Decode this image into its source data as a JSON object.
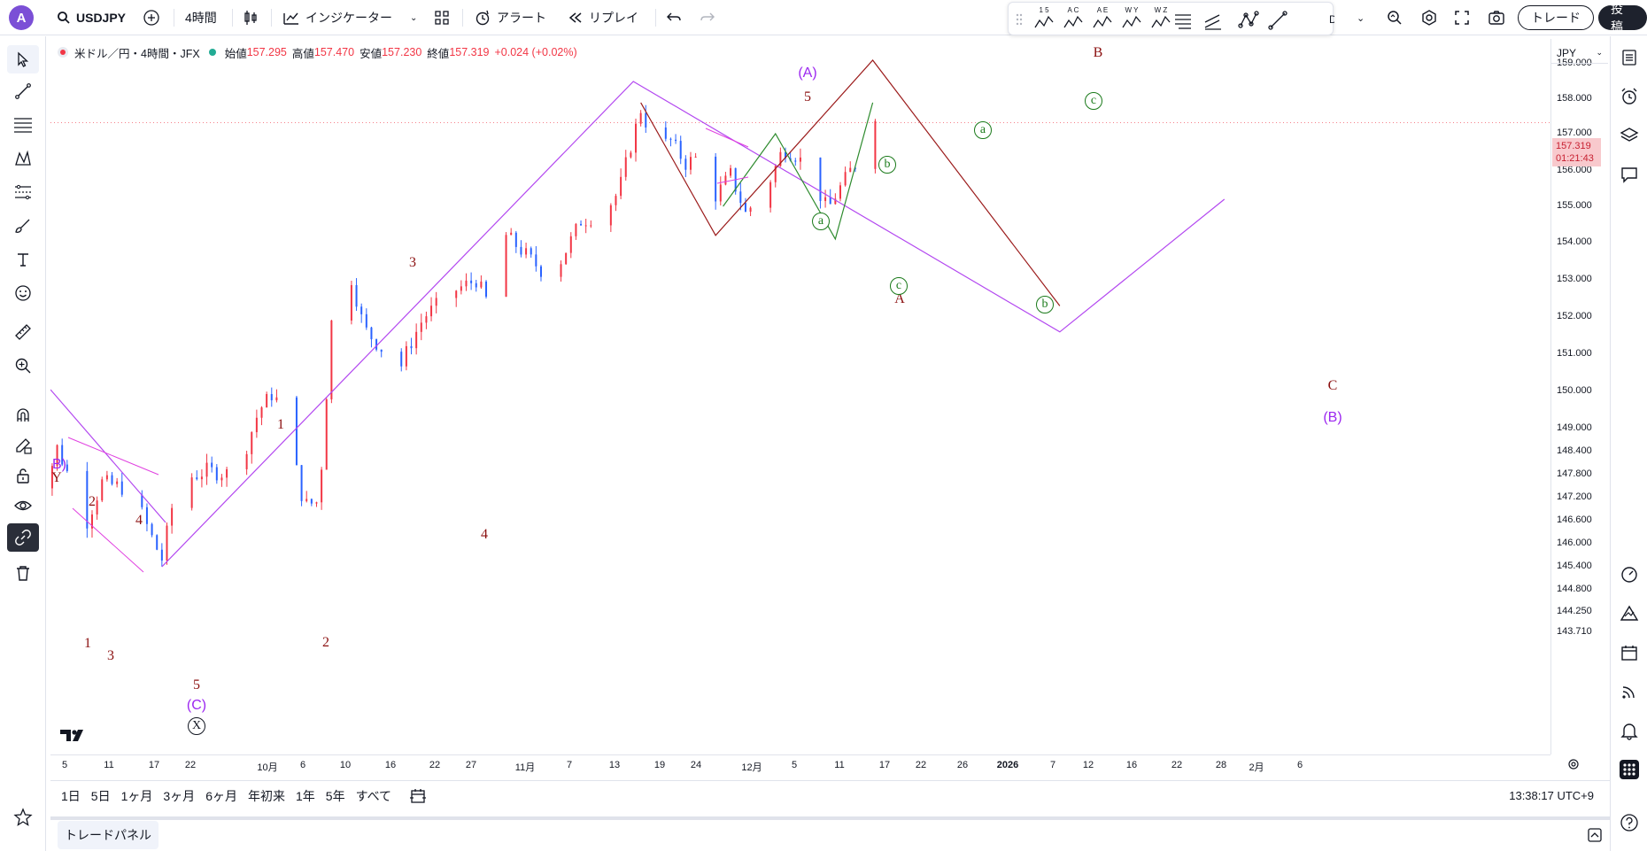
{
  "topbar": {
    "avatar": "A",
    "symbol": "USDJPY",
    "interval": "4時間",
    "indicators": "インジケーター",
    "alert": "アラート",
    "replay": "リプレイ",
    "trade": "トレード",
    "publish": "投稿",
    "drawtool_labels": [
      "1 5",
      "A C",
      "A E",
      "W Y",
      "W Z"
    ]
  },
  "legend": {
    "title": "米ドル／円・4時間・JFX",
    "open_label": "始値",
    "open": "157.295",
    "high_label": "高値",
    "high": "157.470",
    "low_label": "安値",
    "low": "157.230",
    "close_label": "終値",
    "close": "157.319",
    "change": "+0.024 (+0.02%)"
  },
  "price_scale": {
    "currency": "JPY",
    "last_price": "157.319",
    "countdown": "01:21:43",
    "ticks": [
      "159.000",
      "158.000",
      "157.000",
      "156.000",
      "155.000",
      "154.000",
      "153.000",
      "152.000",
      "151.000",
      "150.000",
      "149.000",
      "148.400",
      "147.800",
      "147.200",
      "146.600",
      "146.000",
      "145.400",
      "144.800",
      "144.250",
      "143.710"
    ]
  },
  "time_scale": {
    "ticks": [
      "5",
      "11",
      "17",
      "22",
      "10月",
      "6",
      "10",
      "16",
      "22",
      "27",
      "11月",
      "7",
      "13",
      "19",
      "24",
      "12月",
      "5",
      "11",
      "17",
      "22",
      "26",
      "2026",
      "7",
      "12",
      "16",
      "22",
      "28",
      "2月",
      "6"
    ]
  },
  "ranges": [
    "1日",
    "5日",
    "1ヶ月",
    "3ヶ月",
    "6ヶ月",
    "年初来",
    "1年",
    "5年",
    "すべて"
  ],
  "clock": "13:38:17 UTC+9",
  "bottom_panel": {
    "tab": "トレードパネル"
  },
  "waves": {
    "big": [
      "(A)",
      "(B)",
      "(C)",
      "B)"
    ],
    "maroon": [
      "5",
      "3",
      "1",
      "4",
      "2",
      "2",
      "4",
      "1",
      "3",
      "5",
      "Y",
      "A",
      "B",
      "C"
    ],
    "circled_green": [
      "a",
      "b",
      "c",
      "a",
      "b",
      "c"
    ],
    "circled_black": [
      "X"
    ]
  },
  "colors": {
    "up": "#f23645",
    "down": "#2962ff",
    "purple_line": "#b348f0",
    "maroon_line": "#9b1b1b",
    "green_line": "#2e8b2e",
    "magenta_wedge": "#e040e0"
  },
  "chart_data": {
    "type": "candlestick",
    "instrument": "USDJPY",
    "timeframe": "4時間",
    "ylim": [
      143.71,
      159.3
    ],
    "waypoints": [
      [
        "2025-08-31",
        148.8
      ],
      [
        "2025-09-02",
        147.2
      ],
      [
        "2025-09-04",
        148.5
      ],
      [
        "2025-09-08",
        146.6
      ],
      [
        "2025-09-10",
        147.6
      ],
      [
        "2025-09-14",
        147.4
      ],
      [
        "2025-09-17",
        146.0
      ],
      [
        "2025-09-18",
        145.6
      ],
      [
        "2025-09-20",
        147.6
      ],
      [
        "2025-09-24",
        147.9
      ],
      [
        "2025-09-28",
        147.8
      ],
      [
        "2025-10-01",
        149.5
      ],
      [
        "2025-10-03",
        150.0
      ],
      [
        "2025-10-06",
        147.9
      ],
      [
        "2025-10-07",
        147.0
      ],
      [
        "2025-10-09",
        147.1
      ],
      [
        "2025-10-11",
        152.8
      ],
      [
        "2025-10-13",
        153.3
      ],
      [
        "2025-10-15",
        151.7
      ],
      [
        "2025-10-18",
        151.0
      ],
      [
        "2025-10-19",
        150.2
      ],
      [
        "2025-10-21",
        151.2
      ],
      [
        "2025-10-23",
        152.0
      ],
      [
        "2025-10-27",
        152.7
      ],
      [
        "2025-10-30",
        153.0
      ],
      [
        "2025-11-01",
        152.2
      ],
      [
        "2025-11-03",
        154.2
      ],
      [
        "2025-11-05",
        153.8
      ],
      [
        "2025-11-08",
        153.2
      ],
      [
        "2025-11-10",
        153.4
      ],
      [
        "2025-11-13",
        154.6
      ],
      [
        "2025-11-16",
        154.8
      ],
      [
        "2025-11-18",
        155.4
      ],
      [
        "2025-11-21",
        157.7
      ],
      [
        "2025-11-23",
        156.6
      ],
      [
        "2025-11-25",
        156.8
      ],
      [
        "2025-11-27",
        156.2
      ],
      [
        "2025-11-29",
        156.4
      ],
      [
        "2025-12-01",
        155.3
      ],
      [
        "2025-12-03",
        155.9
      ],
      [
        "2025-12-05",
        154.8
      ],
      [
        "2025-12-08",
        155.6
      ],
      [
        "2025-12-10",
        156.6
      ],
      [
        "2025-12-12",
        156.4
      ],
      [
        "2025-12-14",
        155.7
      ],
      [
        "2025-12-16",
        154.9
      ],
      [
        "2025-12-17",
        155.3
      ],
      [
        "2025-12-19",
        156.0
      ],
      [
        "2025-12-21",
        156.5
      ],
      [
        "2025-12-22",
        157.7
      ],
      [
        "2025-12-23",
        157.3
      ]
    ],
    "patterns": {
      "purple_zigzag": [
        [
          "2025-09-18",
          145.4
        ],
        [
          "2025-11-20",
          158.5
        ],
        [
          "2026-01-16",
          151.6
        ],
        [
          "2026-02-07",
          155.2
        ]
      ],
      "maroon_abc": [
        [
          "2025-11-21",
          157.9
        ],
        [
          "2025-12-01",
          154.2
        ],
        [
          "2025-12-22",
          159.1
        ],
        [
          "2026-01-16",
          152.3
        ]
      ],
      "green_abc": [
        [
          "2025-12-02",
          155.0
        ],
        [
          "2025-12-09",
          157.0
        ],
        [
          "2025-12-17",
          154.1
        ],
        [
          "2025-12-22",
          157.9
        ]
      ]
    }
  }
}
